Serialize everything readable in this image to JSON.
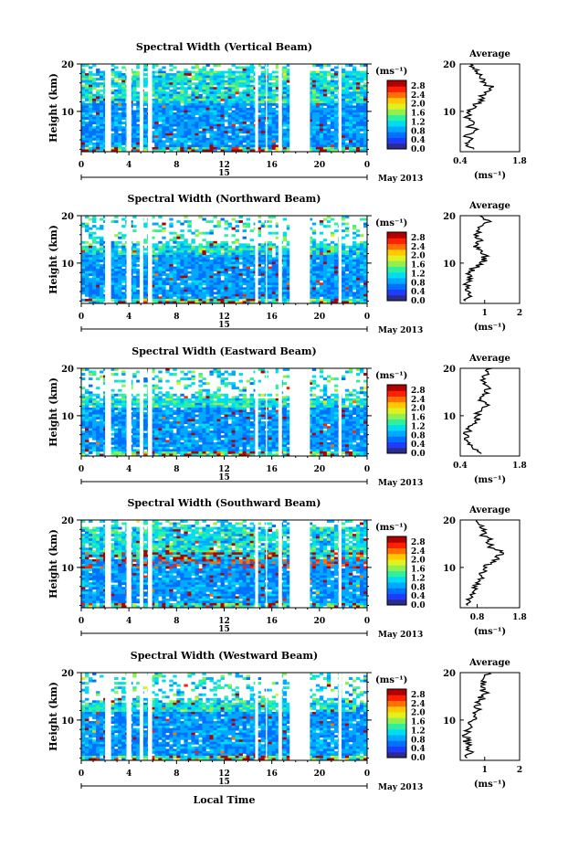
{
  "figure": {
    "date_label": "May 2013",
    "day_label": "15",
    "xlabel": "Local Time",
    "unit_label": "(ms⁻¹)",
    "average_title": "Average",
    "average_xlabel": "(ms⁻¹)"
  },
  "colorbar": {
    "ticks": [
      "2.8",
      "2.4",
      "2.0",
      "1.6",
      "1.2",
      "0.8",
      "0.4",
      "0.0"
    ],
    "colors": [
      "#2c2c8c",
      "#1f3bff",
      "#0070ff",
      "#00a8ff",
      "#00dcf0",
      "#30f0a0",
      "#90f050",
      "#e0f020",
      "#ffc800",
      "#ff7000",
      "#ff2000",
      "#b00000"
    ]
  },
  "chart_data": [
    {
      "type": "heatmap",
      "title": "Spectral Width (Vertical Beam)",
      "xlabel": "Local Time",
      "ylabel": "Height (km)",
      "x_ticks": [
        "0",
        "4",
        "8",
        "12",
        "16",
        "20",
        "0"
      ],
      "y_ticks": [
        "20",
        "10"
      ],
      "xlim": [
        0,
        24
      ],
      "ylim": [
        1.5,
        20
      ],
      "data_gaps_hours": [
        [
          2.0,
          2.5
        ],
        [
          3.8,
          4.2
        ],
        [
          4.9,
          5.2
        ],
        [
          5.6,
          5.95
        ],
        [
          14.6,
          14.85
        ],
        [
          15.5,
          15.6
        ],
        [
          16.55,
          16.85
        ],
        [
          17.5,
          19.2
        ],
        [
          21.6,
          21.85
        ]
      ],
      "colorbar_range": [
        0.0,
        2.8
      ],
      "average_profile": {
        "xlim": [
          0.4,
          1.8
        ],
        "x_ticks": [
          "0.4",
          "1.8"
        ],
        "y_ticks": [
          "20",
          "10"
        ],
        "height_km": [
          2,
          3,
          4,
          5,
          6,
          7,
          8,
          9,
          10,
          11,
          12,
          13,
          14,
          15,
          16,
          17,
          18,
          19,
          20
        ],
        "width_ms": [
          0.72,
          0.58,
          0.66,
          0.52,
          0.75,
          0.62,
          0.68,
          0.56,
          0.63,
          0.78,
          0.84,
          0.92,
          0.97,
          1.12,
          1.0,
          0.86,
          0.78,
          0.7,
          0.64
        ]
      }
    },
    {
      "type": "heatmap",
      "title": "Spectral Width (Northward Beam)",
      "xlabel": "Local Time",
      "ylabel": "Height (km)",
      "x_ticks": [
        "0",
        "4",
        "8",
        "12",
        "16",
        "20",
        "0"
      ],
      "y_ticks": [
        "20",
        "10"
      ],
      "xlim": [
        0,
        24
      ],
      "ylim": [
        1.5,
        20
      ],
      "data_gaps_hours": [
        [
          2.0,
          2.5
        ],
        [
          3.8,
          4.2
        ],
        [
          4.9,
          5.2
        ],
        [
          5.6,
          5.95
        ],
        [
          14.6,
          14.85
        ],
        [
          15.5,
          15.6
        ],
        [
          16.55,
          16.85
        ],
        [
          17.5,
          19.2
        ],
        [
          21.6,
          21.85
        ]
      ],
      "colorbar_range": [
        0.0,
        2.8
      ],
      "average_profile": {
        "xlim": [
          0.3,
          2.0
        ],
        "x_ticks": [
          "1",
          "2"
        ],
        "y_ticks": [
          "20",
          "10"
        ],
        "height_km": [
          2,
          3,
          4,
          5,
          6,
          7,
          8,
          9,
          10,
          11,
          12,
          13,
          14,
          15,
          16,
          17,
          18,
          19,
          20
        ],
        "width_ms": [
          0.45,
          0.62,
          0.55,
          0.48,
          0.52,
          0.5,
          0.58,
          0.7,
          0.85,
          1.05,
          0.9,
          0.78,
          0.82,
          0.9,
          0.7,
          0.82,
          0.95,
          1.12,
          0.86
        ]
      }
    },
    {
      "type": "heatmap",
      "title": "Spectral Width (Eastward Beam)",
      "xlabel": "Local Time",
      "ylabel": "Height (km)",
      "x_ticks": [
        "0",
        "4",
        "8",
        "12",
        "16",
        "20",
        "0"
      ],
      "y_ticks": [
        "20",
        "10"
      ],
      "xlim": [
        0,
        24
      ],
      "ylim": [
        1.5,
        20
      ],
      "data_gaps_hours": [
        [
          2.0,
          2.5
        ],
        [
          3.8,
          4.2
        ],
        [
          4.9,
          5.2
        ],
        [
          5.6,
          5.95
        ],
        [
          14.6,
          14.85
        ],
        [
          15.5,
          15.6
        ],
        [
          16.55,
          16.85
        ],
        [
          17.5,
          19.2
        ],
        [
          21.6,
          21.85
        ]
      ],
      "colorbar_range": [
        0.0,
        2.8
      ],
      "average_profile": {
        "xlim": [
          0.4,
          1.8
        ],
        "x_ticks": [
          "0.4",
          "1.8"
        ],
        "y_ticks": [
          "20",
          "10"
        ],
        "height_km": [
          2,
          3,
          4,
          5,
          6,
          7,
          8,
          9,
          10,
          11,
          12,
          13,
          14,
          15,
          16,
          17,
          18,
          19,
          20
        ],
        "width_ms": [
          0.9,
          0.7,
          0.58,
          0.5,
          0.54,
          0.62,
          0.68,
          0.75,
          0.8,
          0.9,
          1.02,
          0.95,
          0.9,
          0.98,
          1.08,
          1.0,
          0.94,
          1.05,
          1.15
        ]
      }
    },
    {
      "type": "heatmap",
      "title": "Spectral Width (Southward Beam)",
      "xlabel": "Local Time",
      "ylabel": "Height (km)",
      "x_ticks": [
        "0",
        "4",
        "8",
        "12",
        "16",
        "20",
        "0"
      ],
      "y_ticks": [
        "20",
        "10"
      ],
      "xlim": [
        0,
        24
      ],
      "ylim": [
        1.5,
        20
      ],
      "data_gaps_hours": [
        [
          2.0,
          2.5
        ],
        [
          3.8,
          4.2
        ],
        [
          4.9,
          5.2
        ],
        [
          5.6,
          5.95
        ],
        [
          14.6,
          14.85
        ],
        [
          15.5,
          15.6
        ],
        [
          16.55,
          16.85
        ],
        [
          17.5,
          19.2
        ],
        [
          21.6,
          21.85
        ]
      ],
      "colorbar_range": [
        0.0,
        2.8
      ],
      "average_profile": {
        "xlim": [
          0.4,
          1.8
        ],
        "x_ticks": [
          "0.8",
          "1.8"
        ],
        "y_ticks": [
          "20",
          "10"
        ],
        "height_km": [
          2,
          3,
          4,
          5,
          6,
          7,
          8,
          9,
          10,
          11,
          12,
          13,
          14,
          15,
          16,
          17,
          18,
          19,
          20
        ],
        "width_ms": [
          0.58,
          0.62,
          0.66,
          0.72,
          0.78,
          0.84,
          0.9,
          0.96,
          1.02,
          1.12,
          1.3,
          1.42,
          1.2,
          1.05,
          1.15,
          0.92,
          1.0,
          0.85,
          0.78
        ]
      }
    },
    {
      "type": "heatmap",
      "title": "Spectral Width (Westward Beam)",
      "xlabel": "Local Time",
      "ylabel": "Height (km)",
      "x_ticks": [
        "0",
        "4",
        "8",
        "12",
        "16",
        "20",
        "0"
      ],
      "y_ticks": [
        "20",
        "10"
      ],
      "xlim": [
        0,
        24
      ],
      "ylim": [
        1.5,
        20
      ],
      "data_gaps_hours": [
        [
          2.0,
          2.5
        ],
        [
          3.8,
          4.2
        ],
        [
          4.9,
          5.2
        ],
        [
          5.6,
          5.95
        ],
        [
          14.6,
          14.85
        ],
        [
          15.5,
          15.6
        ],
        [
          16.55,
          16.85
        ],
        [
          17.5,
          19.2
        ],
        [
          21.6,
          21.85
        ]
      ],
      "colorbar_range": [
        0.0,
        2.8
      ],
      "average_profile": {
        "xlim": [
          0.3,
          2.0
        ],
        "x_ticks": [
          "1",
          "2"
        ],
        "y_ticks": [
          "20",
          "10"
        ],
        "height_km": [
          2,
          3,
          4,
          5,
          6,
          7,
          8,
          9,
          10,
          11,
          12,
          13,
          14,
          15,
          16,
          17,
          18,
          19,
          20
        ],
        "width_ms": [
          0.5,
          0.62,
          0.55,
          0.48,
          0.5,
          0.46,
          0.52,
          0.6,
          0.66,
          0.72,
          0.8,
          0.72,
          0.85,
          0.95,
          1.02,
          0.9,
          1.05,
          0.98,
          1.12
        ]
      }
    }
  ]
}
